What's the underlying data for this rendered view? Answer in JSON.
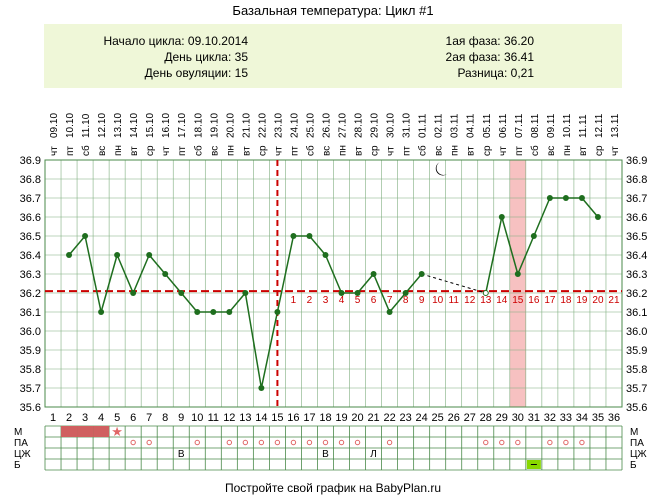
{
  "title": "Базальная температура: Цикл #1",
  "info": {
    "cycle_start": "Начало цикла: 09.10.2014",
    "cycle_day": "День цикла: 35",
    "ovulation_day": "День овуляции: 15",
    "phase1": "1ая фаза: 36.20",
    "phase2": "2ая фаза: 36.41",
    "difference": "Разница: 0,21"
  },
  "footer": "Постройте свой график на BabyPlan.ru",
  "colors": {
    "line": "#1e6e1e",
    "point": "#1e6e1e",
    "grid": "#7fae7f",
    "coverline": "#cc0000",
    "ovulation_line": "#cc0000",
    "highlight": "#f7c1c1",
    "period": "#d06060",
    "star": "#e06666",
    "circle": "#e06666",
    "green_box": "#88d800"
  },
  "chart_data": {
    "type": "line",
    "title": "Базальная температура: Цикл #1",
    "ylim": [
      35.6,
      36.9
    ],
    "y_ticks": [
      "36.9",
      "36.8",
      "36.7",
      "36.6",
      "36.5",
      "36.4",
      "36.3",
      "36.2",
      "36.1",
      "36.0",
      "35.9",
      "35.8",
      "35.7",
      "35.6"
    ],
    "weekdays": [
      "чт",
      "пт",
      "сб",
      "вс",
      "пн",
      "вт",
      "ср",
      "чт",
      "пт",
      "сб",
      "вс",
      "пн",
      "вт",
      "ср",
      "чт",
      "пт",
      "сб",
      "вс",
      "пн",
      "вт",
      "ср",
      "чт",
      "пт",
      "сб",
      "вс",
      "пн",
      "вт",
      "ср",
      "чт",
      "пт",
      "сб",
      "вс",
      "пн",
      "вт",
      "ср",
      "чт"
    ],
    "dates": [
      "09.10",
      "10.10",
      "11.10",
      "12.10",
      "13.10",
      "14.10",
      "15.10",
      "16.10",
      "17.10",
      "18.10",
      "19.10",
      "20.10",
      "21.10",
      "22.10",
      "23.10",
      "24.10",
      "25.10",
      "26.10",
      "27.10",
      "28.10",
      "29.10",
      "30.10",
      "31.10",
      "01.11",
      "02.11",
      "03.11",
      "04.11",
      "05.11",
      "06.11",
      "07.11",
      "08.11",
      "09.11",
      "10.11",
      "11.11",
      "12.11",
      "13.11"
    ],
    "cycle_days": [
      1,
      2,
      3,
      4,
      5,
      6,
      7,
      8,
      9,
      10,
      11,
      12,
      13,
      14,
      15,
      16,
      17,
      18,
      19,
      20,
      21,
      22,
      23,
      24,
      25,
      26,
      27,
      28,
      29,
      30,
      31,
      32,
      33,
      34,
      35,
      36
    ],
    "temperatures": [
      null,
      36.4,
      36.5,
      36.1,
      36.4,
      36.2,
      36.4,
      36.3,
      36.2,
      36.1,
      36.1,
      36.1,
      36.2,
      35.7,
      36.1,
      36.5,
      36.5,
      36.4,
      36.2,
      36.2,
      36.3,
      36.1,
      36.2,
      36.3,
      null,
      null,
      null,
      null,
      36.6,
      36.3,
      36.5,
      36.7,
      36.7,
      36.7,
      36.6,
      null
    ],
    "dashed_gap": {
      "from_day": 24,
      "to_day": 28,
      "to_value": 36.2
    },
    "coverline": 36.21,
    "ovulation_day": 15,
    "highlight_day": 30,
    "post_ovulation_labels": [
      "1",
      "2",
      "3",
      "4",
      "5",
      "6",
      "7",
      "8",
      "9",
      "10",
      "11",
      "12",
      "13",
      "14",
      "15",
      "16",
      "17",
      "18",
      "19",
      "20",
      "21"
    ],
    "rows": {
      "labels": [
        "М",
        "ПА",
        "ЦЖ",
        "Б"
      ],
      "M_period_days": [
        2,
        3,
        4
      ],
      "M_star_day": 5,
      "PA_circle_days": [
        6,
        7,
        10,
        12,
        13,
        14,
        15,
        16,
        17,
        18,
        19,
        20,
        22,
        28,
        29,
        30,
        32,
        33,
        34
      ],
      "CZh_marks": [
        {
          "day": 9,
          "text": "В"
        },
        {
          "day": 18,
          "text": "В"
        },
        {
          "day": 21,
          "text": "Л"
        }
      ],
      "B_green_day": 31
    }
  }
}
